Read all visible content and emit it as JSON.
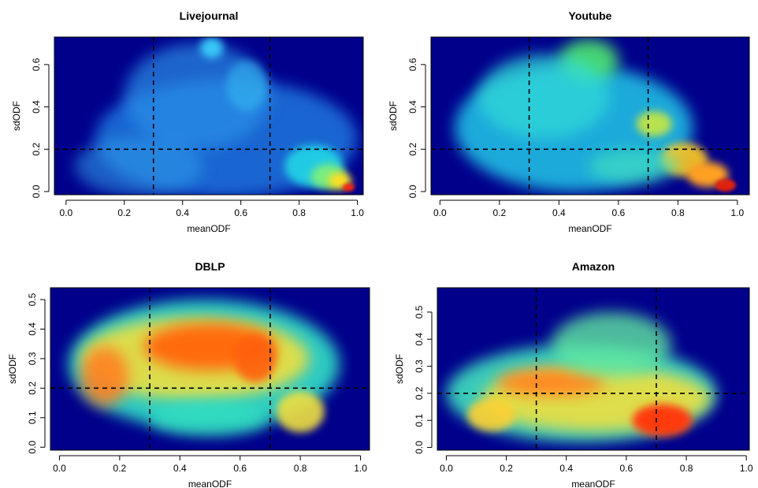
{
  "figure": {
    "panels": [
      {
        "id": "livejournal",
        "title": "Livejournal",
        "xlabel": "meanODF",
        "ylabel": "sdODF",
        "xlim": [
          0.0,
          1.0
        ],
        "ylim": [
          0.0,
          0.72
        ],
        "xticks": [
          "0.0",
          "0.2",
          "0.4",
          "0.6",
          "0.8",
          "1.0"
        ],
        "yticks": [
          "0.0",
          "0.2",
          "0.4",
          "0.6"
        ],
        "ytick_values": [
          0.0,
          0.2,
          0.4,
          0.6
        ],
        "vlines": [
          0.3,
          0.7
        ],
        "hline": 0.2
      },
      {
        "id": "youtube",
        "title": "Youtube",
        "xlabel": "meanODF",
        "ylabel": "sdODF",
        "xlim": [
          0.0,
          1.0
        ],
        "ylim": [
          0.0,
          0.72
        ],
        "xticks": [
          "0.0",
          "0.2",
          "0.4",
          "0.6",
          "0.8",
          "1.0"
        ],
        "yticks": [
          "0.0",
          "0.2",
          "0.4",
          "0.6"
        ],
        "ytick_values": [
          0.0,
          0.2,
          0.4,
          0.6
        ],
        "vlines": [
          0.3,
          0.7
        ],
        "hline": 0.2
      },
      {
        "id": "dblp",
        "title": "DBLP",
        "xlabel": "meanODF",
        "ylabel": "sdODF",
        "xlim": [
          0.0,
          1.0
        ],
        "ylim": [
          0.0,
          0.54
        ],
        "xticks": [
          "0.0",
          "0.2",
          "0.4",
          "0.6",
          "0.8",
          "1.0"
        ],
        "yticks": [
          "0.0",
          "0.1",
          "0.2",
          "0.3",
          "0.4",
          "0.5"
        ],
        "ytick_values": [
          0.0,
          0.1,
          0.2,
          0.3,
          0.4,
          0.5
        ],
        "vlines": [
          0.3,
          0.7
        ],
        "hline": 0.2
      },
      {
        "id": "amazon",
        "title": "Amazon",
        "xlabel": "meanODF",
        "ylabel": "sdODF",
        "xlim": [
          0.0,
          1.0
        ],
        "ylim": [
          0.0,
          0.59
        ],
        "xticks": [
          "0.0",
          "0.2",
          "0.4",
          "0.6",
          "0.8",
          "1.0"
        ],
        "yticks": [
          "0.0",
          "0.1",
          "0.2",
          "0.3",
          "0.4",
          "0.5"
        ],
        "ytick_values": [
          0.0,
          0.1,
          0.2,
          0.3,
          0.4,
          0.5
        ],
        "vlines": [
          0.3,
          0.7
        ],
        "hline": 0.2
      }
    ]
  },
  "chart_data": [
    {
      "type": "heatmap",
      "title": "Livejournal",
      "xlabel": "meanODF",
      "ylabel": "sdODF",
      "xlim": [
        0.0,
        1.0
      ],
      "ylim": [
        0.0,
        0.72
      ],
      "colorscale": [
        "#00008b",
        "#0000ff",
        "#00ffff",
        "#ffff00",
        "#ff0000"
      ],
      "reference_lines": {
        "x": [
          0.3,
          0.7
        ],
        "y": [
          0.2
        ]
      },
      "density_peaks": [
        {
          "x": 0.97,
          "y": 0.02,
          "level": "high"
        },
        {
          "x": 0.9,
          "y": 0.08,
          "level": "medium"
        },
        {
          "x": 0.5,
          "y": 0.68,
          "level": "low"
        },
        {
          "x": 0.3,
          "y": 0.15,
          "level": "low"
        }
      ]
    },
    {
      "type": "heatmap",
      "title": "Youtube",
      "xlabel": "meanODF",
      "ylabel": "sdODF",
      "xlim": [
        0.0,
        1.0
      ],
      "ylim": [
        0.0,
        0.72
      ],
      "colorscale": [
        "#00008b",
        "#0000ff",
        "#00ffff",
        "#ffff00",
        "#ff0000"
      ],
      "reference_lines": {
        "x": [
          0.3,
          0.7
        ],
        "y": [
          0.2
        ]
      },
      "density_peaks": [
        {
          "x": 0.96,
          "y": 0.03,
          "level": "high"
        },
        {
          "x": 0.85,
          "y": 0.12,
          "level": "medium"
        },
        {
          "x": 0.5,
          "y": 0.65,
          "level": "medium"
        },
        {
          "x": 0.72,
          "y": 0.32,
          "level": "medium"
        }
      ]
    },
    {
      "type": "heatmap",
      "title": "DBLP",
      "xlabel": "meanODF",
      "ylabel": "sdODF",
      "xlim": [
        0.0,
        1.0
      ],
      "ylim": [
        0.0,
        0.54
      ],
      "colorscale": [
        "#00008b",
        "#0000ff",
        "#00ffff",
        "#ffff00",
        "#ff0000"
      ],
      "reference_lines": {
        "x": [
          0.3,
          0.7
        ],
        "y": [
          0.2
        ]
      },
      "density_peaks": [
        {
          "x": 0.45,
          "y": 0.34,
          "level": "high"
        },
        {
          "x": 0.15,
          "y": 0.25,
          "level": "high"
        },
        {
          "x": 0.65,
          "y": 0.3,
          "level": "high"
        },
        {
          "x": 0.8,
          "y": 0.12,
          "level": "medium"
        }
      ]
    },
    {
      "type": "heatmap",
      "title": "Amazon",
      "xlabel": "meanODF",
      "ylabel": "sdODF",
      "xlim": [
        0.0,
        1.0
      ],
      "ylim": [
        0.0,
        0.59
      ],
      "colorscale": [
        "#00008b",
        "#0000ff",
        "#00ffff",
        "#ffff00",
        "#ff0000"
      ],
      "reference_lines": {
        "x": [
          0.3,
          0.7
        ],
        "y": [
          0.2
        ]
      },
      "density_peaks": [
        {
          "x": 0.75,
          "y": 0.1,
          "level": "high"
        },
        {
          "x": 0.35,
          "y": 0.25,
          "level": "high"
        },
        {
          "x": 0.15,
          "y": 0.15,
          "level": "medium"
        },
        {
          "x": 0.5,
          "y": 0.38,
          "level": "medium"
        }
      ]
    }
  ]
}
